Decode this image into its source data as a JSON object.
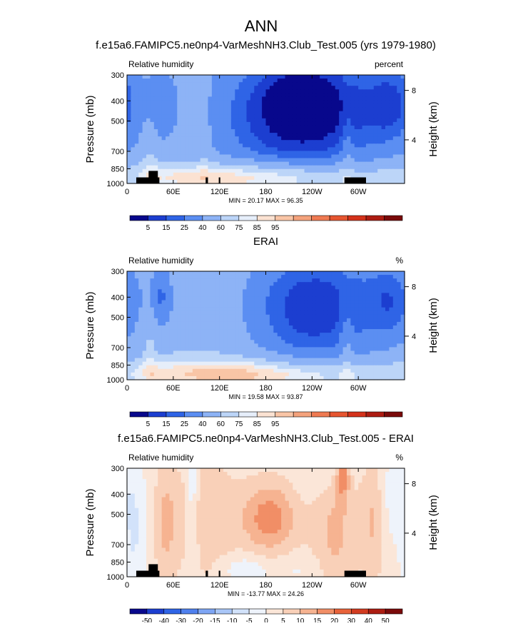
{
  "page_title": "ANN",
  "colors": {
    "rh": [
      "#08088c",
      "#1c3ed0",
      "#2f64e6",
      "#5b8ef2",
      "#8db3f6",
      "#bcd5f8",
      "#e6eefa",
      "#fbe2d2",
      "#f9c5a6",
      "#f4a27c",
      "#ef7a52",
      "#e65530",
      "#d4321b",
      "#ad1c12",
      "#7a0a0a"
    ],
    "diff": [
      "#08088c",
      "#1c3ed0",
      "#2f64e6",
      "#4f80ee",
      "#7ea5f4",
      "#a9c6f7",
      "#d2e2fa",
      "#eef3fb",
      "#fbe6d8",
      "#f9d0b8",
      "#f6b391",
      "#f18e66",
      "#e8623a",
      "#d23b20",
      "#ac1d12",
      "#7a0a0a"
    ],
    "terrain": "#000000"
  },
  "chart_data": [
    {
      "type": "heatmap",
      "title": "f.e15a6.FAMIPC5.ne0np4-VarMeshNH3.Club_Test.005 (yrs 1979-1980)",
      "subtitle_left": "Relative humidity",
      "subtitle_right": "percent",
      "ylabel": "Pressure (mb)",
      "ylabel_right": "Height (km)",
      "xticks": [
        "0",
        "60E",
        "120E",
        "180",
        "120W",
        "60W"
      ],
      "xtick_lon": [
        0,
        60,
        120,
        180,
        240,
        300
      ],
      "xlim": [
        0,
        360
      ],
      "yticks": [
        "300",
        "400",
        "500",
        "700",
        "850",
        "1000"
      ],
      "ytick_p": [
        300,
        400,
        500,
        700,
        850,
        1000
      ],
      "ylim": [
        300,
        1000
      ],
      "yscale": "log",
      "height_ticks": [
        "8",
        "4"
      ],
      "height_km": [
        8,
        4
      ],
      "minmax": "MIN = 20.17  MAX = 96.35",
      "colorbar_levels": [
        "5",
        "15",
        "25",
        "40",
        "60",
        "75",
        "85",
        "95"
      ],
      "colorbar_scheme": "rh",
      "blobs": [
        {
          "lon": 235,
          "p": 440,
          "dlon": 75,
          "dlogp": 0.22,
          "amp": -55
        },
        {
          "lon": 225,
          "p": 380,
          "dlon": 30,
          "dlogp": 0.1,
          "amp": -10
        },
        {
          "lon": 45,
          "p": 420,
          "dlon": 14,
          "dlogp": 0.12,
          "amp": -22
        },
        {
          "lon": 345,
          "p": 410,
          "dlon": 22,
          "dlogp": 0.14,
          "amp": -25
        },
        {
          "lon": 170,
          "p": 600,
          "dlon": 60,
          "dlogp": 0.25,
          "amp": -6
        },
        {
          "lon": 30,
          "p": 720,
          "dlon": 8,
          "dlogp": 0.2,
          "amp": 12
        },
        {
          "lon": 100,
          "p": 550,
          "dlon": 6,
          "dlogp": 0.25,
          "amp": 8
        },
        {
          "lon": 285,
          "p": 760,
          "dlon": 6,
          "dlogp": 0.2,
          "amp": 12
        },
        {
          "lon": 180,
          "p": 960,
          "dlon": 130,
          "dlogp": 0.05,
          "amp": 34
        },
        {
          "lon": 120,
          "p": 900,
          "dlon": 120,
          "dlogp": 0.05,
          "amp": 18
        }
      ],
      "base": 52,
      "terrain": [
        {
          "lon0": 12,
          "lon1": 42,
          "p": 935
        },
        {
          "lon0": 28,
          "lon1": 40,
          "p": 870
        },
        {
          "lon0": 102,
          "lon1": 105,
          "p": 935
        },
        {
          "lon0": 119,
          "lon1": 121,
          "p": 935
        },
        {
          "lon0": 282,
          "lon1": 310,
          "p": 935
        }
      ]
    },
    {
      "type": "heatmap",
      "title": "ERAI",
      "subtitle_left": "Relative humidity",
      "subtitle_right": "%",
      "ylabel": "Pressure (mb)",
      "ylabel_right": "Height (km)",
      "xticks": [
        "0",
        "60E",
        "120E",
        "180",
        "120W",
        "60W"
      ],
      "xtick_lon": [
        0,
        60,
        120,
        180,
        240,
        300
      ],
      "xlim": [
        0,
        360
      ],
      "yticks": [
        "300",
        "400",
        "500",
        "700",
        "850",
        "1000"
      ],
      "ytick_p": [
        300,
        400,
        500,
        700,
        850,
        1000
      ],
      "ylim": [
        300,
        1000
      ],
      "yscale": "log",
      "height_ticks": [
        "8",
        "4"
      ],
      "height_km": [
        8,
        4
      ],
      "minmax": "MIN = 19.58  MAX = 93.87",
      "colorbar_levels": [
        "5",
        "15",
        "25",
        "40",
        "60",
        "75",
        "85",
        "95"
      ],
      "colorbar_scheme": "rh",
      "blobs": [
        {
          "lon": 240,
          "p": 450,
          "dlon": 70,
          "dlogp": 0.22,
          "amp": -50
        },
        {
          "lon": 45,
          "p": 400,
          "dlon": 12,
          "dlogp": 0.12,
          "amp": -30
        },
        {
          "lon": 345,
          "p": 410,
          "dlon": 22,
          "dlogp": 0.14,
          "amp": -25
        },
        {
          "lon": 140,
          "p": 550,
          "dlon": 50,
          "dlogp": 0.3,
          "amp": 6
        },
        {
          "lon": 30,
          "p": 760,
          "dlon": 6,
          "dlogp": 0.2,
          "amp": 14
        },
        {
          "lon": 285,
          "p": 760,
          "dlon": 6,
          "dlogp": 0.2,
          "amp": 14
        },
        {
          "lon": 180,
          "p": 960,
          "dlon": 130,
          "dlogp": 0.05,
          "amp": 34
        },
        {
          "lon": 110,
          "p": 900,
          "dlon": 110,
          "dlogp": 0.05,
          "amp": 16
        }
      ],
      "base": 56,
      "terrain": []
    },
    {
      "type": "heatmap",
      "title": "f.e15a6.FAMIPC5.ne0np4-VarMeshNH3.Club_Test.005 - ERAI",
      "subtitle_left": "Relative humidity",
      "subtitle_right": "%",
      "ylabel": "Pressure (mb)",
      "ylabel_right": "Height (km)",
      "xticks": [
        "0",
        "60E",
        "120E",
        "180",
        "120W",
        "60W"
      ],
      "xtick_lon": [
        0,
        60,
        120,
        180,
        240,
        300
      ],
      "xlim": [
        0,
        360
      ],
      "yticks": [
        "300",
        "400",
        "500",
        "700",
        "850",
        "1000"
      ],
      "ytick_p": [
        300,
        400,
        500,
        700,
        850,
        1000
      ],
      "ylim": [
        300,
        1000
      ],
      "yscale": "log",
      "height_ticks": [
        "8",
        "4"
      ],
      "height_km": [
        8,
        4
      ],
      "minmax": "MIN = -13.77  MAX = 24.26",
      "colorbar_levels": [
        "-50",
        "-40",
        "-30",
        "-20",
        "-15",
        "-10",
        "-5",
        "0",
        "5",
        "10",
        "15",
        "20",
        "30",
        "40",
        "50"
      ],
      "colorbar_scheme": "diff",
      "blobs": [
        {
          "lon": 185,
          "p": 520,
          "dlon": 25,
          "dlogp": 0.12,
          "amp": 16
        },
        {
          "lon": 270,
          "p": 600,
          "dlon": 20,
          "dlogp": 0.3,
          "amp": 9
        },
        {
          "lon": 100,
          "p": 520,
          "dlon": 30,
          "dlogp": 0.2,
          "amp": 8
        },
        {
          "lon": 320,
          "p": 520,
          "dlon": 12,
          "dlogp": 0.2,
          "amp": 9
        },
        {
          "lon": 50,
          "p": 550,
          "dlon": 10,
          "dlogp": 0.2,
          "amp": 8
        },
        {
          "lon": 280,
          "p": 330,
          "dlon": 6,
          "dlogp": 0.08,
          "amp": 14
        },
        {
          "lon": 85,
          "p": 450,
          "dlon": 6,
          "dlogp": 0.3,
          "amp": -9
        },
        {
          "lon": 10,
          "p": 650,
          "dlon": 10,
          "dlogp": 0.3,
          "amp": -7
        },
        {
          "lon": 260,
          "p": 320,
          "dlon": 25,
          "dlogp": 0.08,
          "amp": -5
        },
        {
          "lon": 345,
          "p": 420,
          "dlon": 15,
          "dlogp": 0.15,
          "amp": -6
        },
        {
          "lon": 150,
          "p": 920,
          "dlon": 20,
          "dlogp": 0.05,
          "amp": -6
        },
        {
          "lon": 220,
          "p": 930,
          "dlon": 40,
          "dlogp": 0.05,
          "amp": -3
        }
      ],
      "base": 2,
      "terrain": [
        {
          "lon0": 12,
          "lon1": 42,
          "p": 935
        },
        {
          "lon0": 28,
          "lon1": 40,
          "p": 870
        },
        {
          "lon0": 102,
          "lon1": 105,
          "p": 935
        },
        {
          "lon0": 119,
          "lon1": 121,
          "p": 935
        },
        {
          "lon0": 282,
          "lon1": 310,
          "p": 935
        }
      ]
    }
  ]
}
